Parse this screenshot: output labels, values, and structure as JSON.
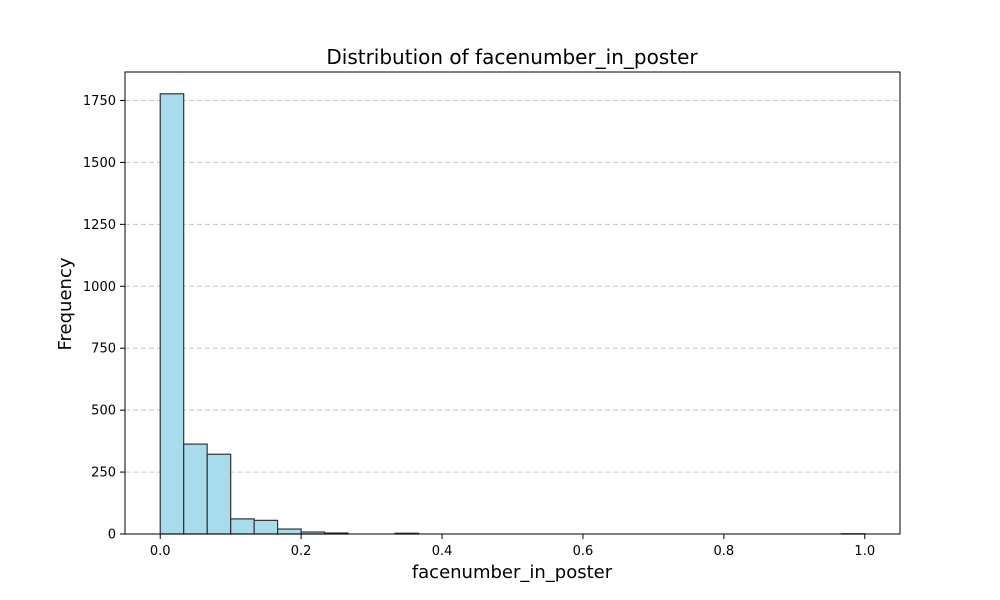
{
  "chart_data": {
    "type": "bar",
    "title": "Distribution of facenumber_in_poster",
    "xlabel": "facenumber_in_poster",
    "ylabel": "Frequency",
    "xlim": [
      -0.05,
      1.05
    ],
    "ylim": [
      0,
      1865
    ],
    "x_ticks": [
      0.0,
      0.2,
      0.4,
      0.6,
      0.8,
      1.0
    ],
    "x_tick_labels": [
      "0.0",
      "0.2",
      "0.4",
      "0.6",
      "0.8",
      "1.0"
    ],
    "y_ticks": [
      0,
      250,
      500,
      750,
      1000,
      1250,
      1500,
      1750
    ],
    "y_tick_labels": [
      "0",
      "250",
      "500",
      "750",
      "1000",
      "1250",
      "1500",
      "1750"
    ],
    "bin_width": 0.0333,
    "bin_starts": [
      0.0,
      0.0333,
      0.0667,
      0.1,
      0.1333,
      0.1667,
      0.2,
      0.2333,
      0.2667,
      0.3,
      0.3333,
      0.3667,
      0.4,
      0.4333,
      0.4667,
      0.5,
      0.5333,
      0.5667,
      0.6,
      0.6333,
      0.6667,
      0.7,
      0.7333,
      0.7667,
      0.8,
      0.8333,
      0.8667,
      0.9,
      0.9333,
      0.9667
    ],
    "values": [
      1777,
      363,
      322,
      61,
      55,
      20,
      8,
      4,
      0,
      0,
      3,
      0,
      0,
      0,
      0,
      0,
      0,
      0,
      0,
      0,
      0,
      0,
      0,
      0,
      0,
      0,
      0,
      0,
      0,
      1
    ],
    "bar_color": "#a8dcec",
    "bar_edge_color": "#333333",
    "grid": "y-dashed",
    "grid_color": "#c8c8c8"
  }
}
